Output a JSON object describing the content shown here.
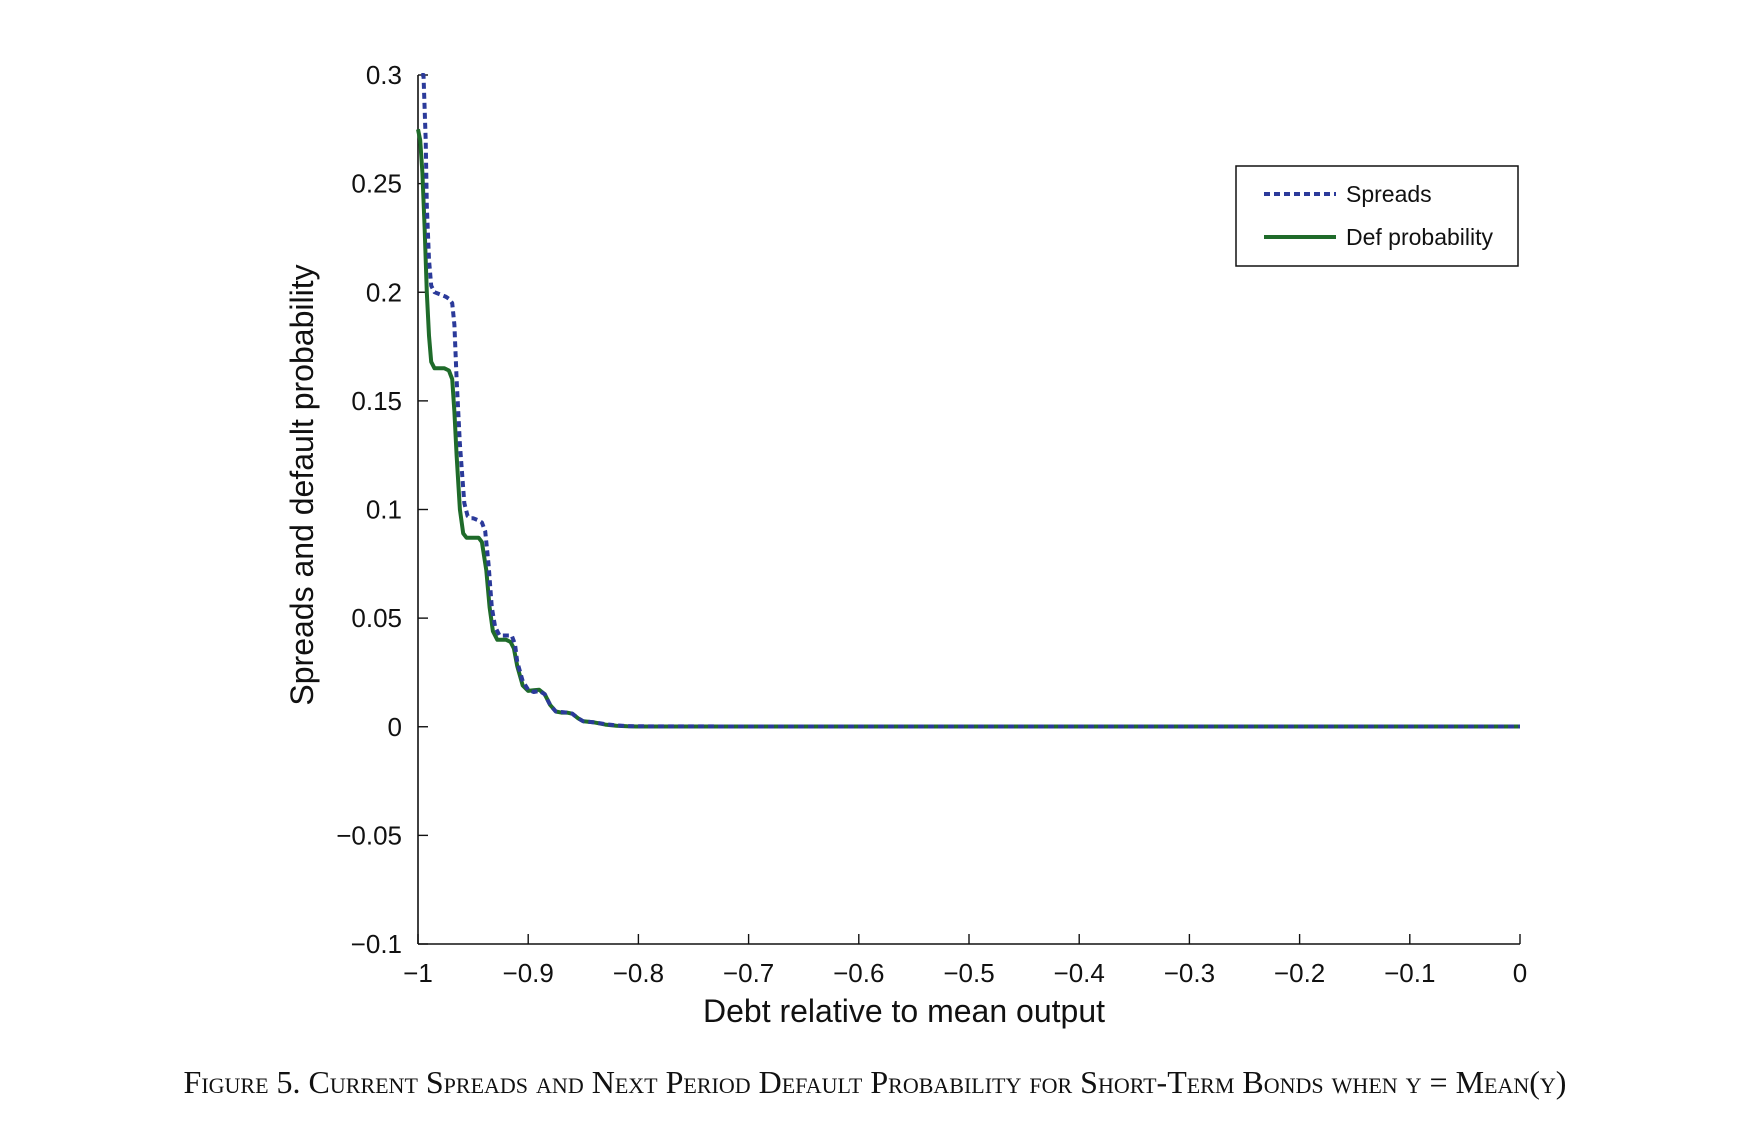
{
  "colors": {
    "spreads": "#2b3a9a",
    "def_probability": "#1f6b2a",
    "axis": "#111111"
  },
  "chart_data": {
    "type": "line",
    "title": "",
    "xlabel": "Debt relative to mean output",
    "ylabel": "Spreads and default probability",
    "xlim": [
      -1,
      0
    ],
    "ylim": [
      -0.1,
      0.3
    ],
    "xticks": [
      -1,
      -0.9,
      -0.8,
      -0.7,
      -0.6,
      -0.5,
      -0.4,
      -0.3,
      -0.2,
      -0.1,
      0
    ],
    "xtick_labels": [
      "−1",
      "−0.9",
      "−0.8",
      "−0.7",
      "−0.6",
      "−0.5",
      "−0.4",
      "−0.3",
      "−0.2",
      "−0.1",
      "0"
    ],
    "yticks": [
      -0.1,
      -0.05,
      0,
      0.05,
      0.1,
      0.15,
      0.2,
      0.25,
      0.3
    ],
    "ytick_labels": [
      "−0.1",
      "−0.05",
      "0",
      "0.05",
      "0.1",
      "0.15",
      "0.2",
      "0.25",
      "0.3"
    ],
    "grid": false,
    "legend_position": "top-right",
    "series": [
      {
        "name": "Spreads",
        "style": "dotted",
        "x": [
          -0.997,
          -0.995,
          -0.993,
          -0.992,
          -0.99,
          -0.988,
          -0.985,
          -0.98,
          -0.975,
          -0.972,
          -0.969,
          -0.967,
          -0.965,
          -0.962,
          -0.958,
          -0.955,
          -0.952,
          -0.95,
          -0.945,
          -0.942,
          -0.939,
          -0.936,
          -0.933,
          -0.93,
          -0.926,
          -0.92,
          -0.915,
          -0.912,
          -0.91,
          -0.905,
          -0.9,
          -0.895,
          -0.89,
          -0.885,
          -0.88,
          -0.875,
          -0.87,
          -0.865,
          -0.86,
          -0.855,
          -0.85,
          -0.84,
          -0.83,
          -0.82,
          -0.81,
          -0.8,
          -0.7,
          -0.5,
          -0.3,
          -0.1,
          0
        ],
        "y": [
          0.3,
          0.3,
          0.27,
          0.24,
          0.215,
          0.203,
          0.2,
          0.199,
          0.198,
          0.197,
          0.195,
          0.185,
          0.16,
          0.13,
          0.103,
          0.097,
          0.096,
          0.096,
          0.095,
          0.094,
          0.09,
          0.075,
          0.055,
          0.046,
          0.042,
          0.042,
          0.042,
          0.038,
          0.03,
          0.021,
          0.017,
          0.016,
          0.0165,
          0.015,
          0.01,
          0.007,
          0.0068,
          0.0065,
          0.006,
          0.004,
          0.0025,
          0.002,
          0.0012,
          0.0006,
          0.0003,
          0.0002,
          0.0001,
          0.0001,
          0.0001,
          0.0001,
          0.0001
        ]
      },
      {
        "name": "Def probability",
        "style": "solid",
        "x": [
          -1.0,
          -0.998,
          -0.996,
          -0.994,
          -0.992,
          -0.99,
          -0.988,
          -0.985,
          -0.98,
          -0.976,
          -0.972,
          -0.969,
          -0.967,
          -0.965,
          -0.962,
          -0.959,
          -0.956,
          -0.952,
          -0.948,
          -0.945,
          -0.942,
          -0.938,
          -0.935,
          -0.932,
          -0.928,
          -0.924,
          -0.92,
          -0.916,
          -0.913,
          -0.91,
          -0.905,
          -0.9,
          -0.895,
          -0.89,
          -0.885,
          -0.88,
          -0.875,
          -0.87,
          -0.865,
          -0.86,
          -0.855,
          -0.85,
          -0.84,
          -0.83,
          -0.82,
          -0.81,
          -0.8,
          -0.7,
          -0.5,
          -0.3,
          -0.1,
          0
        ],
        "y": [
          0.275,
          0.27,
          0.255,
          0.23,
          0.2,
          0.18,
          0.168,
          0.165,
          0.165,
          0.165,
          0.164,
          0.16,
          0.145,
          0.125,
          0.1,
          0.089,
          0.087,
          0.087,
          0.087,
          0.087,
          0.085,
          0.072,
          0.055,
          0.044,
          0.04,
          0.04,
          0.04,
          0.039,
          0.036,
          0.028,
          0.019,
          0.0165,
          0.0168,
          0.017,
          0.015,
          0.01,
          0.007,
          0.0065,
          0.0065,
          0.006,
          0.004,
          0.0025,
          0.002,
          0.001,
          0.0005,
          0.0002,
          0.0001,
          0.0001,
          0.0001,
          0.0001,
          0.0001,
          0.0001
        ]
      }
    ]
  },
  "caption": "Figure 5. Current Spreads and Next Period Default Probability for Short-Term Bonds when y = Mean(y)"
}
